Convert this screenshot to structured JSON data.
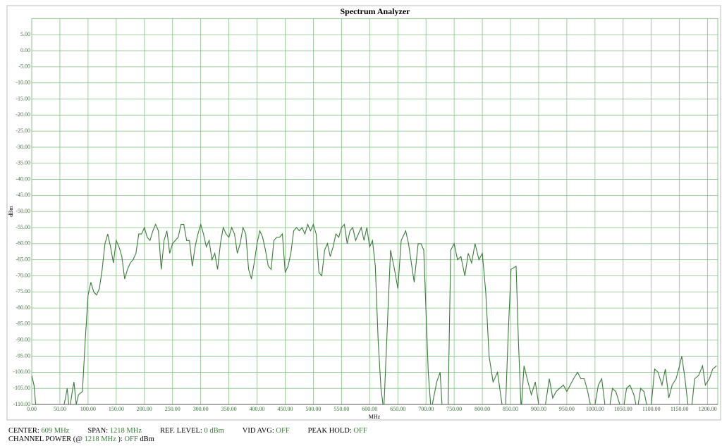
{
  "chart_data": {
    "type": "line",
    "title": "Spectrum Analyzer",
    "x_label": "MHz",
    "y_label": "dBm",
    "xlim": [
      0,
      1218
    ],
    "ylim": [
      -110,
      10
    ],
    "grid": true,
    "xticks": [
      {
        "value": 0,
        "label": "0.00"
      },
      {
        "value": 50,
        "label": "50.00"
      },
      {
        "value": 100,
        "label": "100.00"
      },
      {
        "value": 150,
        "label": "150.00"
      },
      {
        "value": 200,
        "label": "200.00"
      },
      {
        "value": 250,
        "label": "250.00"
      },
      {
        "value": 300,
        "label": "300.00"
      },
      {
        "value": 350,
        "label": "350.00"
      },
      {
        "value": 400,
        "label": "400.00"
      },
      {
        "value": 450,
        "label": "450.00"
      },
      {
        "value": 500,
        "label": "500.00"
      },
      {
        "value": 550,
        "label": "550.00"
      },
      {
        "value": 600,
        "label": "600.00"
      },
      {
        "value": 650,
        "label": "650.00"
      },
      {
        "value": 700,
        "label": "700.00"
      },
      {
        "value": 750,
        "label": "750.00"
      },
      {
        "value": 800,
        "label": "800.00"
      },
      {
        "value": 850,
        "label": "850.00"
      },
      {
        "value": 900,
        "label": "900.00"
      },
      {
        "value": 950,
        "label": "950.00"
      },
      {
        "value": 1000,
        "label": "1000.00"
      },
      {
        "value": 1050,
        "label": "1050.00"
      },
      {
        "value": 1100,
        "label": "1100.00"
      },
      {
        "value": 1150,
        "label": "1150.00"
      },
      {
        "value": 1200,
        "label": "1200.00"
      }
    ],
    "yticks": [
      {
        "value": 5,
        "label": "5.00"
      },
      {
        "value": 0,
        "label": "0.00"
      },
      {
        "value": -5,
        "label": "-5.00"
      },
      {
        "value": -10,
        "label": "-10.00"
      },
      {
        "value": -15,
        "label": "-15.00"
      },
      {
        "value": -20,
        "label": "-20.00"
      },
      {
        "value": -25,
        "label": "-25.00"
      },
      {
        "value": -30,
        "label": "-30.00"
      },
      {
        "value": -35,
        "label": "-35.00"
      },
      {
        "value": -40,
        "label": "-40.00"
      },
      {
        "value": -45,
        "label": "-45.00"
      },
      {
        "value": -50,
        "label": "-50.00"
      },
      {
        "value": -55,
        "label": "-55.00"
      },
      {
        "value": -60,
        "label": "-60.00"
      },
      {
        "value": -65,
        "label": "-65.00"
      },
      {
        "value": -70,
        "label": "-70.00"
      },
      {
        "value": -75,
        "label": "-75.00"
      },
      {
        "value": -80,
        "label": "-80.00"
      },
      {
        "value": -85,
        "label": "-85.00"
      },
      {
        "value": -90,
        "label": "-90.00"
      },
      {
        "value": -95,
        "label": "-95.00"
      },
      {
        "value": -100,
        "label": "-100.00"
      },
      {
        "value": -105,
        "label": "-105.00"
      },
      {
        "value": -110,
        "label": "-110.00"
      }
    ],
    "series": [
      {
        "color": "#3b7a3b",
        "x": [
          0,
          4,
          8,
          30,
          55,
          60,
          63,
          67,
          72,
          75,
          79,
          83,
          90,
          95,
          100,
          105,
          110,
          115,
          120,
          125,
          130,
          135,
          140,
          145,
          150,
          155,
          160,
          165,
          170,
          175,
          180,
          185,
          190,
          195,
          200,
          205,
          210,
          215,
          220,
          225,
          230,
          235,
          240,
          245,
          250,
          255,
          260,
          265,
          270,
          275,
          280,
          285,
          290,
          295,
          300,
          305,
          310,
          315,
          320,
          325,
          330,
          335,
          340,
          345,
          350,
          355,
          360,
          365,
          370,
          375,
          380,
          385,
          390,
          395,
          400,
          405,
          410,
          415,
          420,
          425,
          430,
          435,
          440,
          445,
          450,
          455,
          460,
          465,
          470,
          475,
          480,
          485,
          490,
          495,
          500,
          505,
          510,
          515,
          520,
          525,
          530,
          535,
          540,
          545,
          550,
          555,
          560,
          565,
          570,
          575,
          580,
          585,
          590,
          595,
          600,
          605,
          610,
          615,
          620,
          625,
          637,
          644,
          650,
          656,
          664,
          669,
          679,
          686,
          691,
          696,
          704,
          709,
          719,
          725,
          729,
          739,
          744,
          750,
          756,
          762,
          769,
          775,
          781,
          787,
          794,
          800,
          806,
          812,
          819,
          827,
          835,
          841,
          846,
          851,
          860,
          864,
          869,
          874,
          881,
          887,
          894,
          900,
          906,
          912,
          919,
          925,
          931,
          937,
          944,
          950,
          956,
          962,
          969,
          975,
          981,
          987,
          994,
          1000,
          1006,
          1012,
          1019,
          1025,
          1031,
          1037,
          1044,
          1050,
          1056,
          1062,
          1069,
          1075,
          1081,
          1087,
          1094,
          1100,
          1106,
          1112,
          1119,
          1125,
          1131,
          1137,
          1144,
          1150,
          1154,
          1159,
          1165,
          1171,
          1177,
          1184,
          1191,
          1196,
          1203,
          1209,
          1216
        ],
        "values": [
          -101,
          -104,
          -112,
          -112,
          -112,
          -108,
          -105,
          -112,
          -106,
          -103,
          -110,
          -107,
          -106,
          -90,
          -76,
          -72,
          -75,
          -76,
          -74,
          -68,
          -60,
          -57,
          -61,
          -66,
          -59,
          -61,
          -64,
          -71,
          -68,
          -66,
          -65,
          -63,
          -57,
          -57,
          -55,
          -58,
          -59,
          -56,
          -54,
          -56,
          -68,
          -59,
          -56,
          -63,
          -60,
          -59,
          -58,
          -54,
          -54,
          -59,
          -59,
          -67,
          -61,
          -57,
          -54,
          -57,
          -61,
          -59,
          -65,
          -63,
          -68,
          -60,
          -55,
          -57,
          -58,
          -55,
          -57,
          -63,
          -60,
          -55,
          -57,
          -68,
          -71,
          -66,
          -60,
          -56,
          -58,
          -62,
          -67,
          -68,
          -59,
          -58,
          -58,
          -57,
          -69,
          -67,
          -63,
          -56,
          -55,
          -56,
          -55,
          -57,
          -54,
          -56,
          -54,
          -57,
          -69,
          -70,
          -62,
          -60,
          -64,
          -61,
          -57,
          -58,
          -55,
          -54,
          -60,
          -56,
          -55,
          -59,
          -57,
          -55,
          -59,
          -55,
          -61,
          -59,
          -67,
          -90,
          -105,
          -112,
          -62,
          -68,
          -74,
          -59,
          -56,
          -60,
          -72,
          -60,
          -60,
          -62,
          -100,
          -112,
          -103,
          -100,
          -112,
          -112,
          -62,
          -60,
          -65,
          -64,
          -70,
          -63,
          -66,
          -60,
          -65,
          -63,
          -75,
          -95,
          -103,
          -100,
          -110,
          -112,
          -88,
          -68,
          -67,
          -90,
          -112,
          -98,
          -103,
          -107,
          -103,
          -110,
          -112,
          -110,
          -102,
          -108,
          -106,
          -105,
          -104,
          -106,
          -104,
          -102,
          -100,
          -102,
          -102,
          -106,
          -112,
          -110,
          -104,
          -102,
          -112,
          -112,
          -105,
          -106,
          -110,
          -112,
          -105,
          -104,
          -107,
          -112,
          -105,
          -106,
          -112,
          -110,
          -99,
          -100,
          -104,
          -99,
          -108,
          -104,
          -102,
          -98,
          -95,
          -101,
          -110,
          -112,
          -102,
          -101,
          -98,
          -104,
          -102,
          -99,
          -98
        ]
      }
    ]
  },
  "footer": [
    [
      {
        "text": "CENTER:"
      },
      {
        "text": "609 MHz",
        "em": true
      }
    ],
    [
      {
        "text": "SPAN:"
      },
      {
        "text": "1218 MHz",
        "em": true
      }
    ],
    [
      {
        "text": "REF. LEVEL:"
      },
      {
        "text": "0 dBm",
        "em": true
      }
    ],
    [
      {
        "text": "VID AVG:"
      },
      {
        "text": "OFF",
        "em": true
      }
    ],
    [
      {
        "text": "PEAK HOLD:"
      },
      {
        "text": "OFF",
        "em": true
      }
    ]
  ],
  "footer2": [
    {
      "text": "CHANNEL POWER (@"
    },
    {
      "text": "1218 MHz",
      "em": true
    },
    {
      "text": "):"
    },
    {
      "text": "OFF",
      "em": true
    },
    {
      "text": "dBm"
    }
  ]
}
